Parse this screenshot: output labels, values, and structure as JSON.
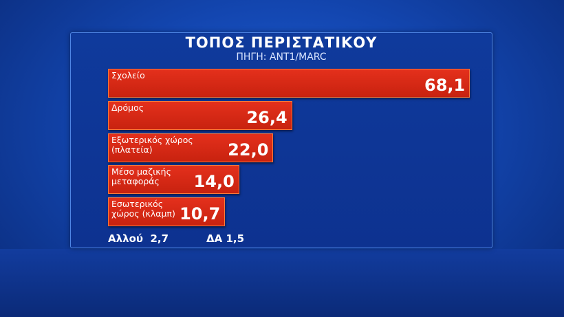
{
  "chart_data": {
    "type": "hbar",
    "title": "ΤΟΠΟΣ ΠΕΡΙΣΤΑΤΙΚΟΥ",
    "subtitle": "ΠΗΓΗ: ΑΝΤ1/MARC",
    "categories": [
      "Σχολείο",
      "Δρόμος",
      "Εξωτερικός χώρος\n(πλατεία)",
      "Μέσο μαζικής\nμεταφοράς",
      "Εσωτερικός\nχώρος (κλαμπ)"
    ],
    "values": [
      68.1,
      26.4,
      22.0,
      14.0,
      10.7
    ],
    "value_labels": [
      "68,1",
      "26,4",
      "22,0",
      "14,0",
      "10,7"
    ],
    "color": "#e4301c",
    "footnotes": [
      "Αλλού  2,7",
      "ΔΑ 1,5"
    ]
  }
}
